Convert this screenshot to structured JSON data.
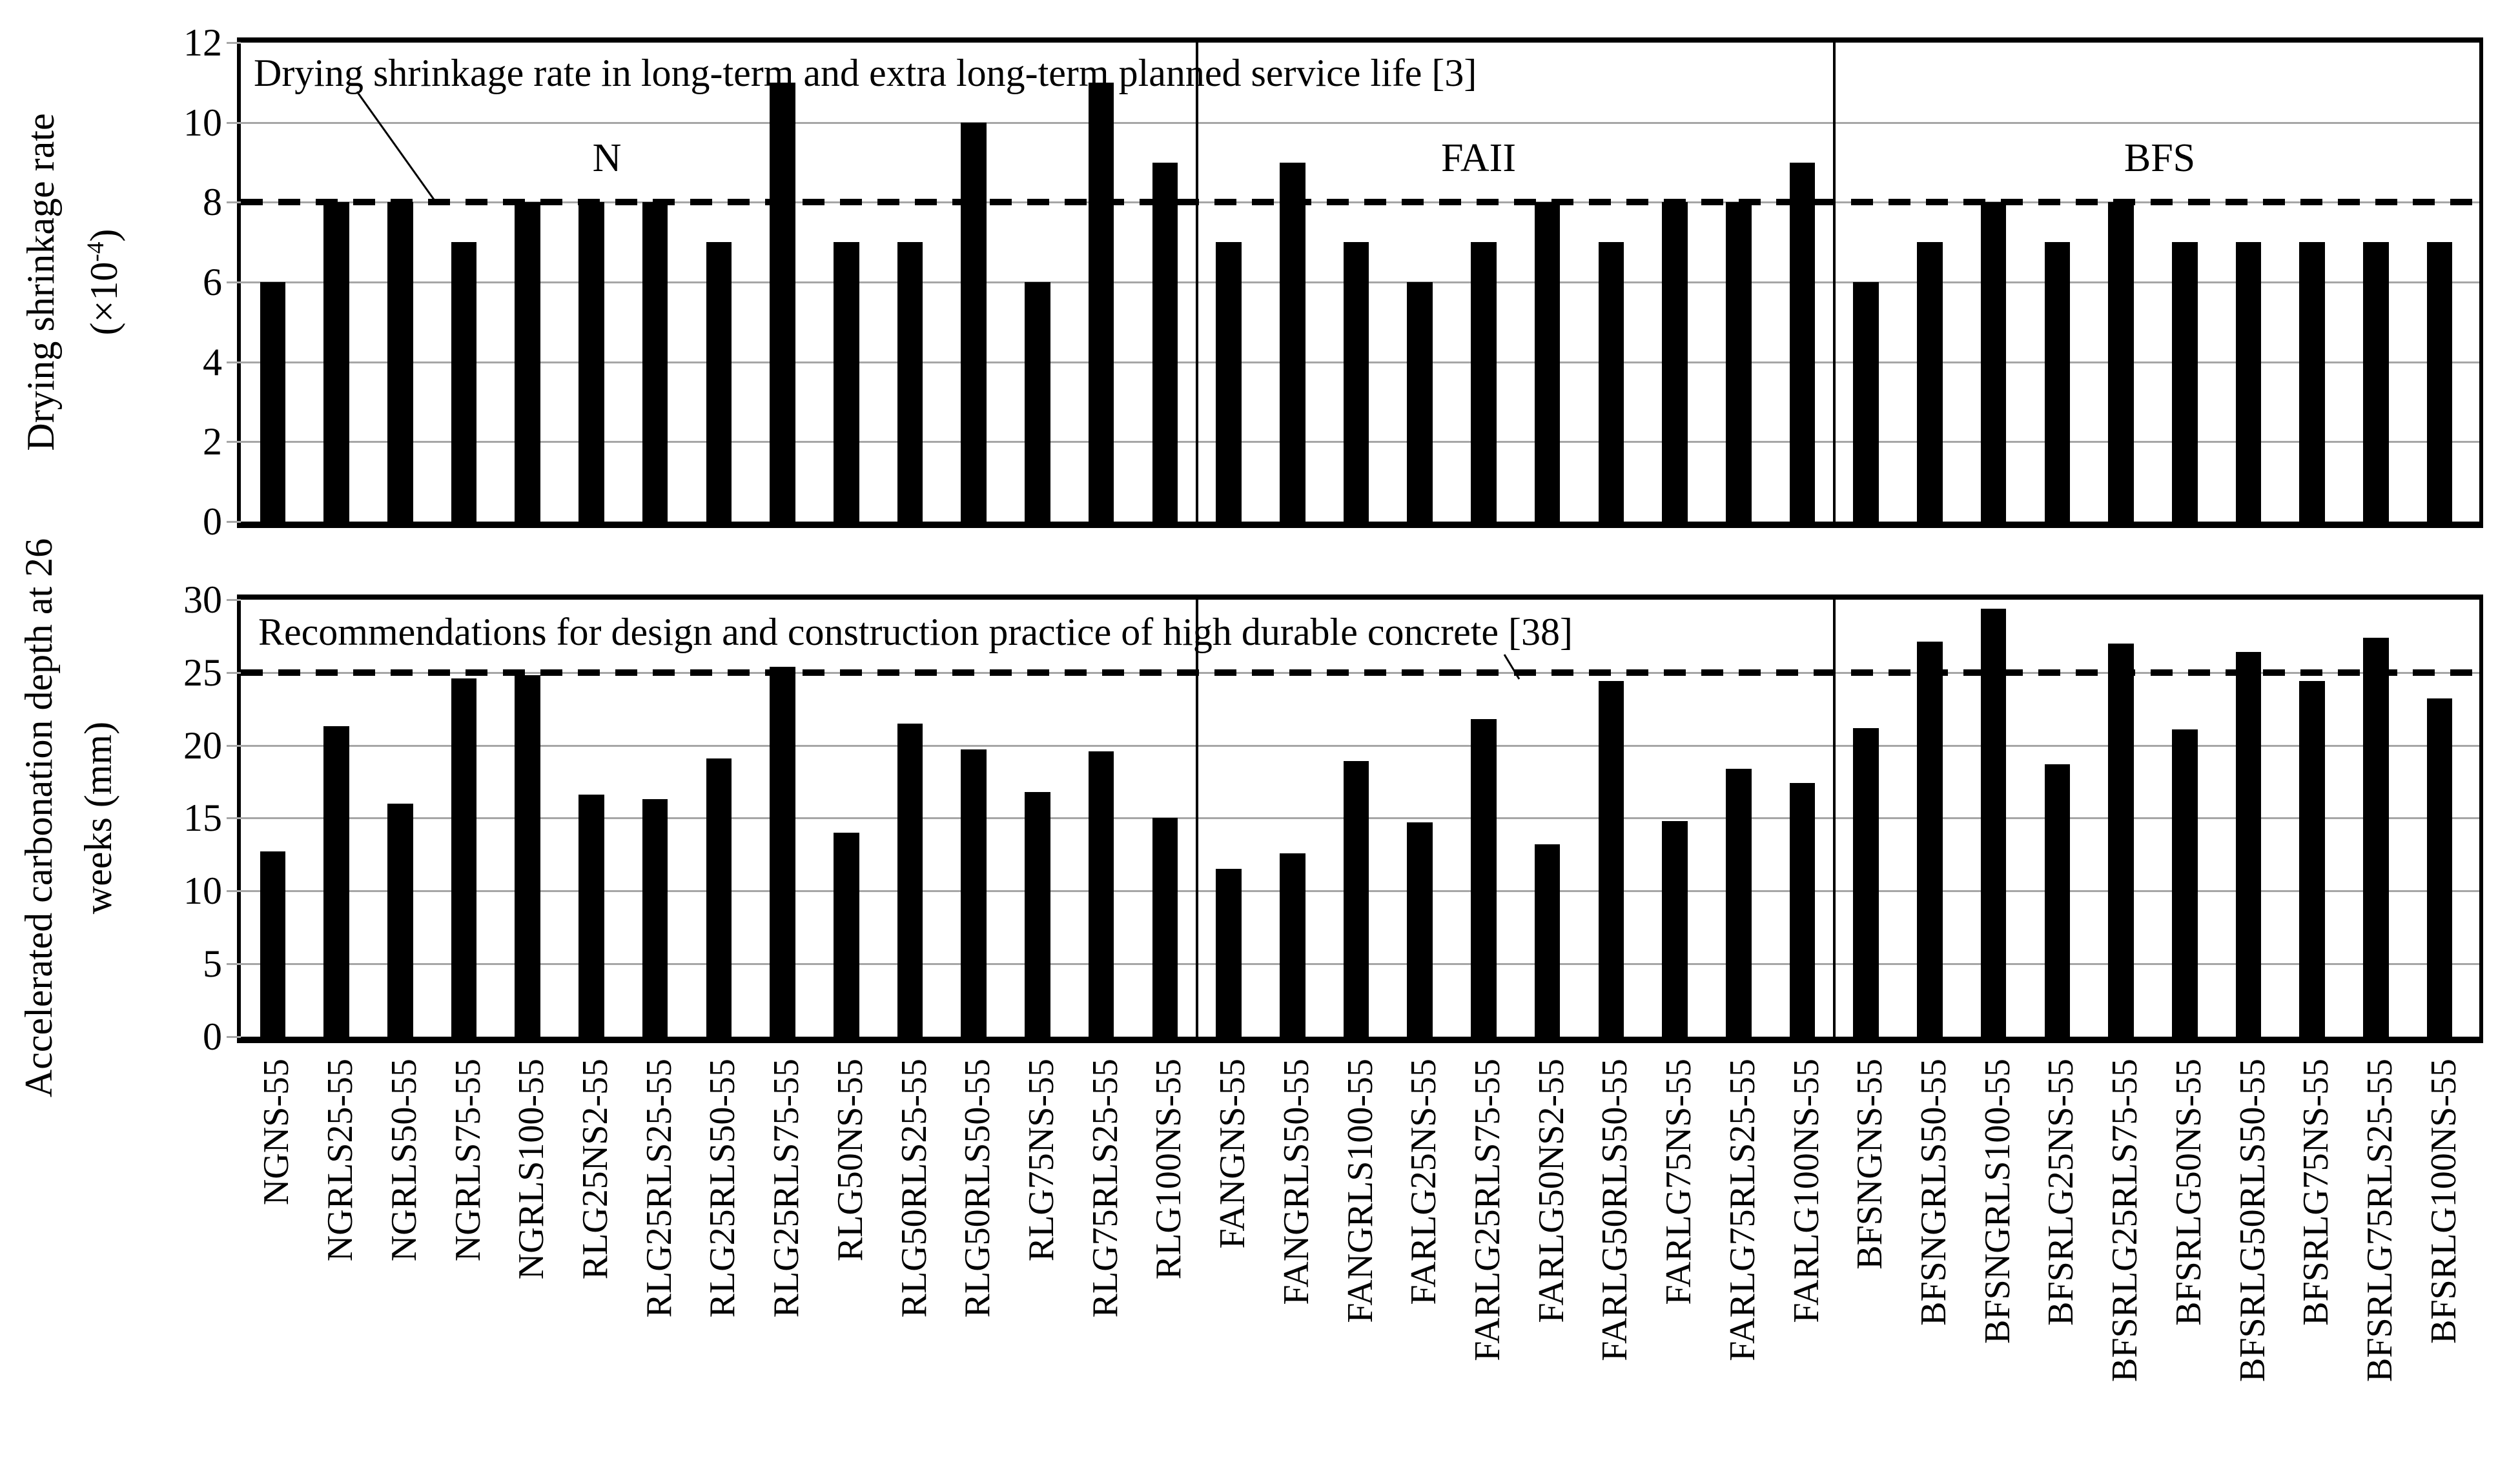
{
  "figure": {
    "background": "#ffffff",
    "bar_color": "#000000",
    "gridline_color": "#a6a6a6",
    "reference_line_color": "#000000"
  },
  "labels": {
    "top_y_axis_title": "Drying shrinkage rate",
    "top_y_axis_unit_pre": "(×10",
    "top_y_axis_unit_sup": "-4",
    "top_y_axis_unit_post": ")",
    "bottom_y_axis_title_line1": "Accelerated carbonation depth at 26",
    "bottom_y_axis_title_line2": "weeks (mm)",
    "top_annotation": "Drying shrinkage rate in long-term and extra long-term planned service life [3]",
    "bottom_annotation": "Recommendations for design and construction practice of high durable concrete [38]"
  },
  "chart_data": [
    {
      "type": "bar",
      "panel": "top",
      "ylabel": "Drying shrinkage rate (×10-4)",
      "ylim": [
        0,
        12
      ],
      "yticks": [
        0,
        2,
        4,
        6,
        8,
        10,
        12
      ],
      "grid": true,
      "legend_position": "none",
      "reference_line": {
        "value": 8,
        "style": "dashed",
        "annotation": "Drying shrinkage rate in long-term and extra long-term planned service life [3]"
      },
      "groups": [
        {
          "label": "N",
          "count": 15
        },
        {
          "label": "FAII",
          "count": 10
        },
        {
          "label": "BFS",
          "count": 10
        }
      ],
      "categories": [
        "NGNS-55",
        "NGRLS25-55",
        "NGRLS50-55",
        "NGRLS75-55",
        "NGRLS100-55",
        "RLG25NS2-55",
        "RLG25RLS25-55",
        "RLG25RLS50-55",
        "RLG25RLS75-55",
        "RLG50NS-55",
        "RLG50RLS25-55",
        "RLG50RLS50-55",
        "RLG75NS-55",
        "RLG75RLS25-55",
        "RLG100NS-55",
        "FANGNS-55",
        "FANGRLS50-55",
        "FANGRLS100-55",
        "FARLG25NS-55",
        "FARLG25RLS75-55",
        "FARLG50NS2-55",
        "FARLG50RLS50-55",
        "FARLG75NS-55",
        "FARLG75RLS25-55",
        "FARLG100NS-55",
        "BFSNGNS-55",
        "BFSNGRLS50-55",
        "BFSNGRLS100-55",
        "BFSRLG25NS-55",
        "BFSRLG25RLS75-55",
        "BFSRLG50NS-55",
        "BFSRLG50RLS50-55",
        "BFSRLG75NS-55",
        "BFSRLG75RLS25-55",
        "BFSRLG100NS-55"
      ],
      "values": [
        6,
        8,
        8,
        7,
        8,
        8,
        8,
        7,
        11,
        7,
        7,
        10,
        6,
        11,
        9,
        7,
        9,
        7,
        6,
        7,
        8,
        7,
        8,
        8,
        9,
        6,
        7,
        8,
        7,
        8,
        7,
        7,
        7,
        7,
        7
      ]
    },
    {
      "type": "bar",
      "panel": "bottom",
      "ylabel": "Accelerated carbonation depth at 26 weeks (mm)",
      "ylim": [
        0,
        30
      ],
      "yticks": [
        0,
        5,
        10,
        15,
        20,
        25,
        30
      ],
      "grid": true,
      "legend_position": "none",
      "reference_line": {
        "value": 25,
        "style": "dashed",
        "annotation": "Recommendations for design and construction practice of high durable concrete [38]"
      },
      "groups": [
        {
          "label": "N",
          "count": 15
        },
        {
          "label": "FAII",
          "count": 10
        },
        {
          "label": "BFS",
          "count": 10
        }
      ],
      "categories": [
        "NGNS-55",
        "NGRLS25-55",
        "NGRLS50-55",
        "NGRLS75-55",
        "NGRLS100-55",
        "RLG25NS2-55",
        "RLG25RLS25-55",
        "RLG25RLS50-55",
        "RLG25RLS75-55",
        "RLG50NS-55",
        "RLG50RLS25-55",
        "RLG50RLS50-55",
        "RLG75NS-55",
        "RLG75RLS25-55",
        "RLG100NS-55",
        "FANGNS-55",
        "FANGRLS50-55",
        "FANGRLS100-55",
        "FARLG25NS-55",
        "FARLG25RLS75-55",
        "FARLG50NS2-55",
        "FARLG50RLS50-55",
        "FARLG75NS-55",
        "FARLG75RLS25-55",
        "FARLG100NS-55",
        "BFSNGNS-55",
        "BFSNGRLS50-55",
        "BFSNGRLS100-55",
        "BFSRLG25NS-55",
        "BFSRLG25RLS75-55",
        "BFSRLG50NS-55",
        "BFSRLG50RLS50-55",
        "BFSRLG75NS-55",
        "BFSRLG75RLS25-55",
        "BFSRLG100NS-55"
      ],
      "values": [
        12.7,
        21.3,
        16.0,
        24.6,
        24.8,
        16.6,
        16.3,
        19.1,
        25.4,
        14.0,
        21.5,
        19.7,
        16.8,
        19.6,
        15.0,
        11.5,
        12.6,
        18.9,
        14.7,
        21.8,
        13.2,
        24.4,
        14.8,
        18.4,
        17.4,
        21.2,
        27.1,
        29.4,
        18.7,
        27.0,
        21.1,
        26.4,
        24.4,
        27.4,
        23.2
      ]
    }
  ]
}
